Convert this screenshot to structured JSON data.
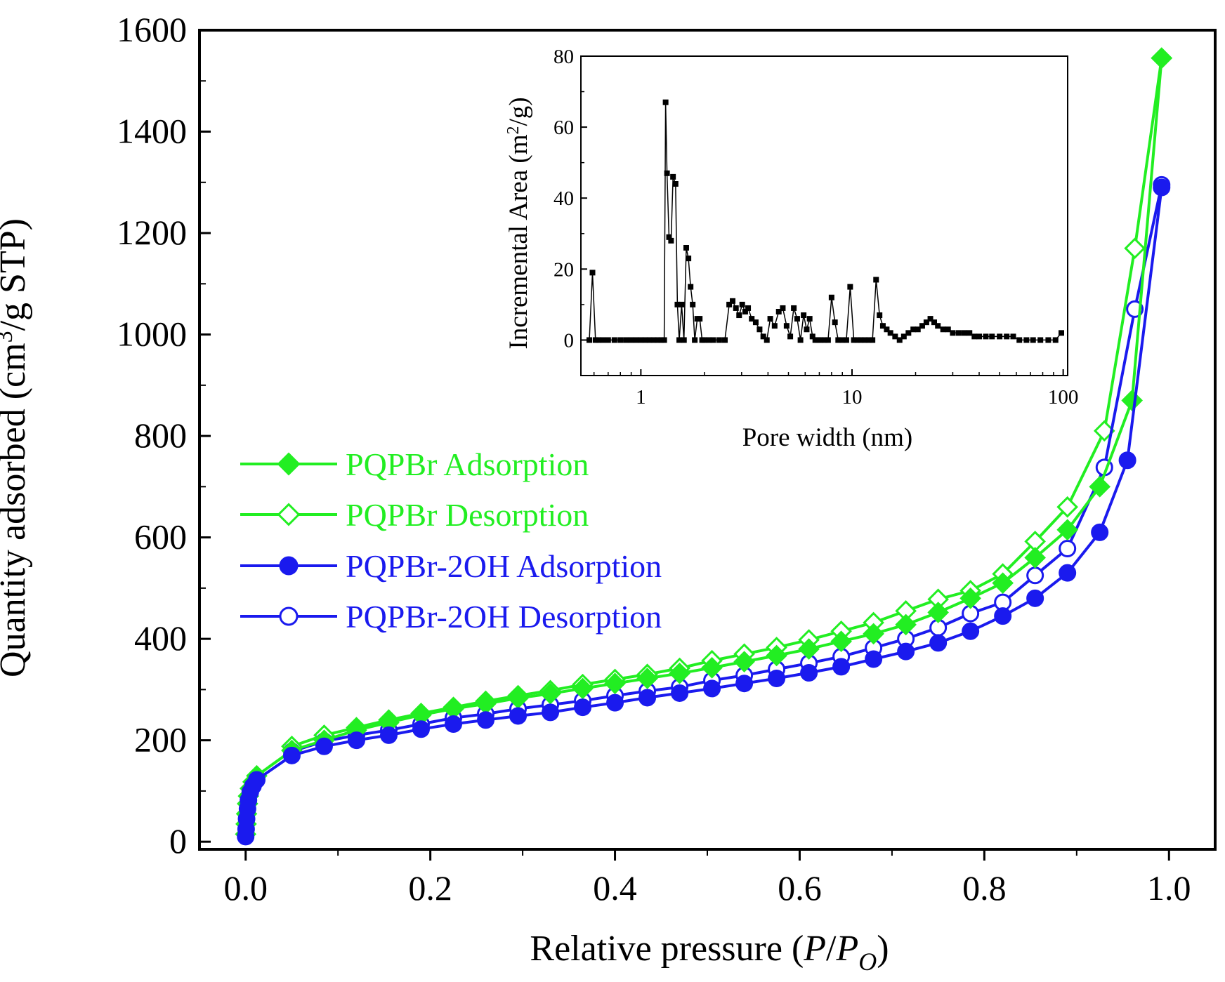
{
  "chart_data": [
    {
      "id": "main",
      "type": "line",
      "xlabel": "Relative pressure (P/P_O)",
      "xlabel_parts": {
        "prefix": "Relative pressure (",
        "P": "P",
        "slash": "/",
        "P2": "P",
        "sub": "O",
        "suffix": ")"
      },
      "ylabel": "Quantity adsorbed (cm3/g STP)",
      "ylabel_parts": {
        "prefix": "Quantity adsorbed (cm",
        "sup": "3",
        "suffix": "/g STP)"
      },
      "xlim": [
        -0.05,
        1.05
      ],
      "ylim": [
        -15,
        1600
      ],
      "xticks": [
        0.0,
        0.2,
        0.4,
        0.6,
        0.8,
        1.0
      ],
      "xtick_labels": [
        "0.0",
        "0.2",
        "0.4",
        "0.6",
        "0.8",
        "1.0"
      ],
      "yticks": [
        0,
        200,
        400,
        600,
        800,
        1000,
        1200,
        1400,
        1600
      ],
      "ytick_labels": [
        "0",
        "200",
        "400",
        "600",
        "800",
        "1000",
        "1200",
        "1400",
        "1600"
      ],
      "legend_position": "center-left",
      "series": [
        {
          "name": "PQPBr Adsorption",
          "color": "#22ee22",
          "marker": "diamond-filled",
          "x": [
            0.0,
            0.0005,
            0.001,
            0.002,
            0.003,
            0.005,
            0.008,
            0.012,
            0.05,
            0.085,
            0.12,
            0.155,
            0.19,
            0.225,
            0.26,
            0.295,
            0.33,
            0.365,
            0.4,
            0.435,
            0.47,
            0.505,
            0.54,
            0.575,
            0.61,
            0.645,
            0.68,
            0.715,
            0.75,
            0.785,
            0.82,
            0.855,
            0.89,
            0.925,
            0.96,
            0.992
          ],
          "y": [
            15,
            35,
            55,
            75,
            90,
            105,
            118,
            130,
            180,
            200,
            220,
            235,
            250,
            262,
            272,
            283,
            292,
            302,
            312,
            322,
            332,
            343,
            355,
            367,
            380,
            395,
            410,
            428,
            452,
            480,
            510,
            560,
            615,
            700,
            870,
            1545
          ]
        },
        {
          "name": "PQPBr Desorption",
          "color": "#22ee22",
          "marker": "diamond-open",
          "x": [
            0.992,
            0.963,
            0.93,
            0.89,
            0.855,
            0.82,
            0.785,
            0.75,
            0.715,
            0.68,
            0.645,
            0.61,
            0.575,
            0.54,
            0.505,
            0.47,
            0.435,
            0.4,
            0.365,
            0.33,
            0.295,
            0.26,
            0.225,
            0.19,
            0.155,
            0.12,
            0.085,
            0.05
          ],
          "y": [
            1545,
            1170,
            810,
            660,
            592,
            528,
            495,
            478,
            455,
            432,
            415,
            398,
            383,
            370,
            357,
            342,
            330,
            320,
            310,
            298,
            288,
            277,
            265,
            253,
            240,
            225,
            210,
            188
          ]
        },
        {
          "name": "PQPBr-2OH Adsorption",
          "color": "#1a1aee",
          "marker": "circle-filled",
          "x": [
            0.0,
            0.0005,
            0.001,
            0.002,
            0.003,
            0.005,
            0.008,
            0.012,
            0.05,
            0.085,
            0.12,
            0.155,
            0.19,
            0.225,
            0.26,
            0.295,
            0.33,
            0.365,
            0.4,
            0.435,
            0.47,
            0.505,
            0.54,
            0.575,
            0.61,
            0.645,
            0.68,
            0.715,
            0.75,
            0.785,
            0.82,
            0.855,
            0.89,
            0.925,
            0.955,
            0.992
          ],
          "y": [
            10,
            25,
            45,
            65,
            82,
            98,
            110,
            122,
            170,
            188,
            200,
            210,
            222,
            232,
            240,
            248,
            255,
            265,
            274,
            284,
            293,
            302,
            312,
            322,
            333,
            345,
            360,
            375,
            392,
            415,
            445,
            480,
            530,
            610,
            752,
            1290
          ]
        },
        {
          "name": "PQPBr-2OH Desorption",
          "color": "#1a1aee",
          "marker": "circle-open",
          "x": [
            0.992,
            0.963,
            0.93,
            0.89,
            0.855,
            0.82,
            0.785,
            0.75,
            0.715,
            0.68,
            0.645,
            0.61,
            0.575,
            0.54,
            0.505,
            0.47,
            0.435,
            0.4,
            0.365,
            0.33,
            0.295,
            0.26,
            0.225,
            0.19,
            0.155,
            0.12,
            0.085,
            0.05
          ],
          "y": [
            1295,
            1050,
            738,
            578,
            525,
            472,
            450,
            422,
            400,
            382,
            365,
            352,
            340,
            328,
            318,
            305,
            297,
            288,
            278,
            270,
            262,
            252,
            244,
            232,
            220,
            210,
            198,
            178
          ]
        }
      ]
    },
    {
      "id": "inset",
      "type": "line",
      "xscale": "log",
      "xlabel": "Pore width (nm)",
      "ylabel": "Incremental Area (m2/g)",
      "ylabel_parts": {
        "prefix": "Incremental Area (m",
        "sup": "2",
        "suffix": "/g)"
      },
      "xlim": [
        0.52,
        105
      ],
      "ylim": [
        -10,
        80
      ],
      "xticks": [
        1,
        10,
        100
      ],
      "xtick_labels": [
        "1",
        "10",
        "100"
      ],
      "yticks": [
        0,
        20,
        40,
        60,
        80
      ],
      "ytick_labels": [
        "0",
        "20",
        "40",
        "60",
        "80"
      ],
      "series": [
        {
          "name": "Incremental Area",
          "color": "#000000",
          "marker": "square-filled",
          "x": [
            0.57,
            0.59,
            0.61,
            0.63,
            0.66,
            0.7,
            0.75,
            0.8,
            0.85,
            0.9,
            0.95,
            1.0,
            1.05,
            1.1,
            1.15,
            1.2,
            1.25,
            1.29,
            1.31,
            1.33,
            1.36,
            1.39,
            1.42,
            1.46,
            1.49,
            1.52,
            1.56,
            1.6,
            1.64,
            1.68,
            1.72,
            1.76,
            1.8,
            1.85,
            1.9,
            1.95,
            2.0,
            2.1,
            2.2,
            2.35,
            2.5,
            2.62,
            2.72,
            2.82,
            2.92,
            3.02,
            3.12,
            3.22,
            3.35,
            3.5,
            3.65,
            3.8,
            3.95,
            4.1,
            4.3,
            4.5,
            4.7,
            4.9,
            5.1,
            5.3,
            5.5,
            5.7,
            5.9,
            6.1,
            6.3,
            6.5,
            6.7,
            6.9,
            7.1,
            7.4,
            7.7,
            8.0,
            8.3,
            8.6,
            9.0,
            9.4,
            9.8,
            10.2,
            10.6,
            11.0,
            11.5,
            12.0,
            12.5,
            13.0,
            13.5,
            14.0,
            14.6,
            15.2,
            16.0,
            16.8,
            17.6,
            18.5,
            19.5,
            20.5,
            21.5,
            22.5,
            23.5,
            24.5,
            25.5,
            27.0,
            28.5,
            30.0,
            32.0,
            34.0,
            36.0,
            38.0,
            40.0,
            43.0,
            46.0,
            50.0,
            54.0,
            58.0,
            62.0,
            67.0,
            72.0,
            78.0,
            85.0,
            92.0,
            98.0
          ],
          "y": [
            0,
            19,
            0,
            0,
            0,
            0,
            0,
            0,
            0,
            0,
            0,
            0,
            0,
            0,
            0,
            0,
            0,
            0,
            67,
            47,
            29,
            28,
            46,
            44,
            10,
            0,
            10,
            0,
            26,
            23,
            15,
            10,
            0,
            6,
            6,
            0,
            0,
            0,
            0,
            0,
            0,
            10,
            11,
            9,
            7,
            10,
            8,
            9,
            6,
            5,
            3,
            1,
            0,
            6,
            4,
            8,
            9,
            4,
            1,
            9,
            6,
            0,
            7,
            3,
            6,
            1,
            0,
            0,
            0,
            0,
            0,
            12,
            5,
            0,
            0,
            0,
            15,
            0,
            0,
            0,
            0,
            0,
            0,
            17,
            7,
            4,
            3,
            2,
            1,
            0,
            1,
            2,
            3,
            3,
            4,
            5,
            6,
            5,
            4,
            3,
            3,
            2,
            2,
            2,
            2,
            1,
            1,
            1,
            1,
            1,
            1,
            1,
            0,
            0,
            0,
            0,
            0,
            0,
            2
          ]
        }
      ]
    }
  ]
}
